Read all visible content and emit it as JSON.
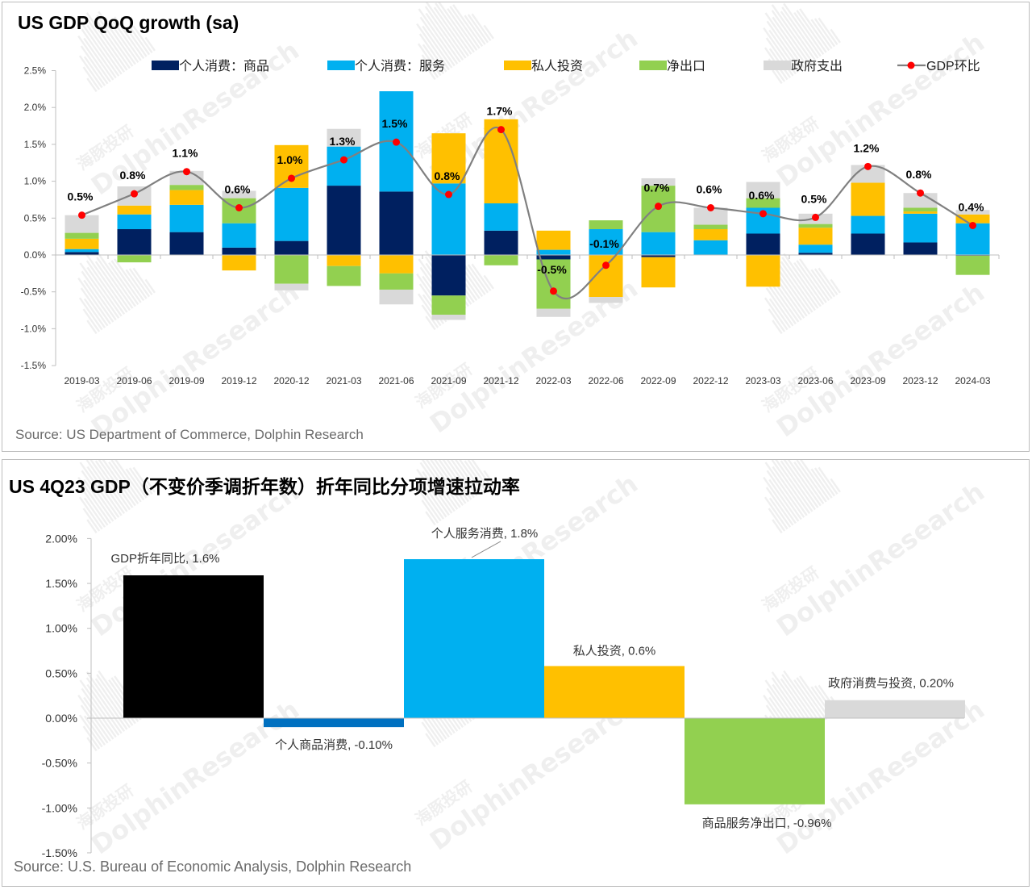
{
  "colors": {
    "goods": "#002060",
    "services": "#00b0f0",
    "investment": "#ffc000",
    "net_exports": "#92d050",
    "government": "#d9d9d9",
    "gdp_line": "#808080",
    "gdp_marker": "#ff0000",
    "total_gdp_bar": "#000000",
    "goods_bar2": "#0070c0"
  },
  "watermark": {
    "brand": "DolphinResearch",
    "cn": "海豚投研"
  },
  "chart1": {
    "title": "US GDP QoQ growth (sa)",
    "source": "Source: US Department of Commerce, Dolphin Research"
  },
  "chart2": {
    "title": "US 4Q23 GDP（不变价季调折年数）折年同比分项增速拉动率",
    "source": "Source: U.S. Bureau of Economic Analysis, Dolphin Research"
  },
  "chart_data": [
    {
      "type": "bar",
      "stacked": true,
      "title": "US GDP QoQ growth (sa)",
      "categories": [
        "2019-03",
        "2019-06",
        "2019-09",
        "2019-12",
        "2020-12",
        "2021-03",
        "2021-06",
        "2021-09",
        "2021-12",
        "2022-03",
        "2022-06",
        "2022-09",
        "2022-12",
        "2023-03",
        "2023-06",
        "2023-09",
        "2023-12",
        "2024-03"
      ],
      "series": [
        {
          "name": "个人消费：商品",
          "color_key": "goods",
          "values": [
            0.04,
            0.35,
            0.31,
            0.1,
            0.19,
            0.94,
            0.86,
            -0.55,
            0.33,
            -0.06,
            0.0,
            -0.03,
            0.0,
            0.29,
            0.03,
            0.29,
            0.17,
            -0.01
          ]
        },
        {
          "name": "个人消费：服务",
          "color_key": "services",
          "values": [
            0.04,
            0.2,
            0.37,
            0.33,
            0.72,
            0.53,
            1.36,
            0.97,
            0.37,
            0.07,
            0.35,
            0.31,
            0.2,
            0.35,
            0.11,
            0.24,
            0.39,
            0.43
          ]
        },
        {
          "name": "私人投资",
          "color_key": "investment",
          "values": [
            0.14,
            0.12,
            0.2,
            -0.21,
            0.58,
            -0.15,
            -0.25,
            0.68,
            1.14,
            0.26,
            -0.57,
            -0.41,
            0.15,
            -0.43,
            0.23,
            0.45,
            0.03,
            0.12
          ]
        },
        {
          "name": "净出口",
          "color_key": "net_exports",
          "values": [
            0.08,
            -0.1,
            0.07,
            0.34,
            -0.39,
            -0.27,
            -0.22,
            -0.26,
            -0.14,
            -0.67,
            0.12,
            0.63,
            0.06,
            0.13,
            0.05,
            0.0,
            0.05,
            -0.26
          ]
        },
        {
          "name": "政府支出",
          "color_key": "government",
          "values": [
            0.24,
            0.26,
            0.19,
            0.1,
            -0.09,
            0.24,
            -0.2,
            -0.07,
            0.0,
            -0.11,
            -0.08,
            0.1,
            0.23,
            0.22,
            0.14,
            0.24,
            0.2,
            0.06
          ]
        }
      ],
      "line": {
        "name": "GDP环比",
        "values": [
          0.54,
          0.83,
          1.13,
          0.64,
          1.04,
          1.29,
          1.53,
          0.82,
          1.7,
          -0.49,
          -0.14,
          0.66,
          0.64,
          0.56,
          0.51,
          1.2,
          0.84,
          0.4
        ]
      },
      "point_labels": [
        "0.5%",
        "0.8%",
        "1.1%",
        "0.6%",
        "1.0%",
        "1.3%",
        "1.5%",
        "0.8%",
        "1.7%",
        "-0.5%",
        "-0.1%",
        "0.7%",
        "0.6%",
        "0.6%",
        "0.5%",
        "1.2%",
        "0.8%",
        "0.4%"
      ],
      "ylim": [
        -1.5,
        2.5
      ],
      "yticks": [
        "2.5%",
        "2.0%",
        "1.5%",
        "1.0%",
        "0.5%",
        "0.0%",
        "-0.5%",
        "-1.0%",
        "-1.5%"
      ],
      "ytick_values": [
        2.5,
        2.0,
        1.5,
        1.0,
        0.5,
        0.0,
        -0.5,
        -1.0,
        -1.5
      ],
      "legend_position": "top"
    },
    {
      "type": "bar",
      "waterfall": true,
      "title": "US 4Q23 GDP（不变价季调折年数）折年同比分项增速拉动率",
      "categories": [
        "GDP折年同比",
        "个人商品消费",
        "个人服务消费",
        "私人投资",
        "商品服务净出口",
        "政府消费与投资"
      ],
      "values": [
        1.59,
        -0.1,
        1.77,
        0.58,
        -0.96,
        0.2
      ],
      "bar_labels": [
        "GDP折年同比, 1.6%",
        "个人商品消费, -0.10%",
        "个人服务消费, 1.8%",
        "私人投资, 0.6%",
        "商品服务净出口, -0.96%",
        "政府消费与投资, 0.20%"
      ],
      "ylim": [
        -1.5,
        2.0
      ],
      "yticks": [
        "2.00%",
        "1.50%",
        "1.00%",
        "0.50%",
        "0.00%",
        "-0.50%",
        "-1.00%",
        "-1.50%"
      ],
      "ytick_values": [
        2.0,
        1.5,
        1.0,
        0.5,
        0.0,
        -0.5,
        -1.0,
        -1.5
      ]
    }
  ]
}
